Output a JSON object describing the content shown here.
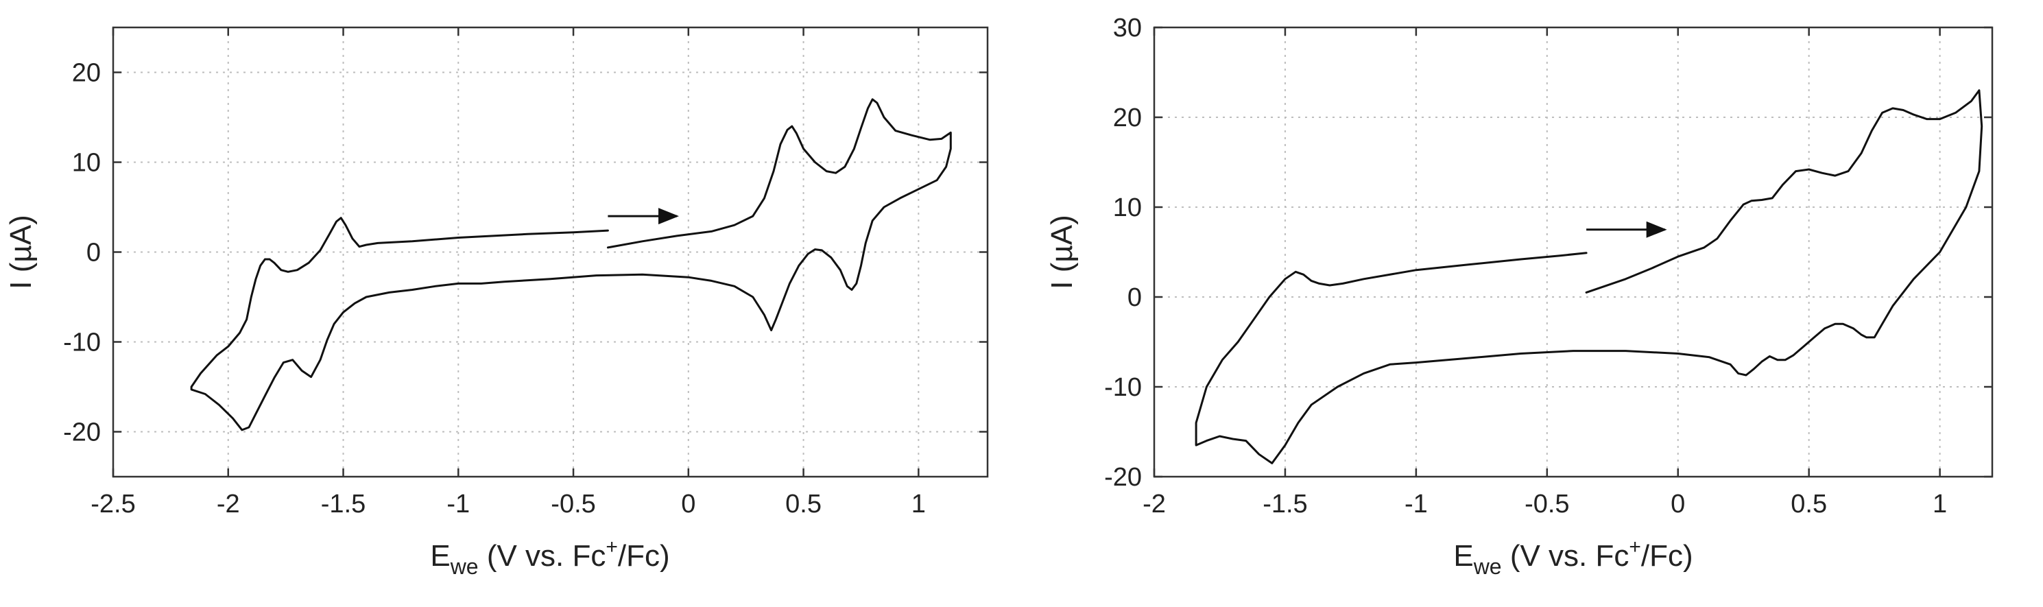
{
  "chart_data": [
    {
      "type": "line",
      "xlabel": {
        "main": "E",
        "sub": "we",
        "rest1": " (V vs. Fc",
        "sup": "+",
        "rest2": "/Fc)"
      },
      "ylabel": "I (µA)",
      "xlim": [
        -2.5,
        1.3
      ],
      "ylim": [
        -25,
        25
      ],
      "xticks": [
        -2.5,
        -2,
        -1.5,
        -1,
        -0.5,
        0,
        0.5,
        1
      ],
      "xtick_labels": [
        "-2.5",
        "-2",
        "-1.5",
        "-1",
        "-0.5",
        "0",
        "0.5",
        "1"
      ],
      "yticks": [
        -20,
        -10,
        0,
        10,
        20
      ],
      "ytick_labels": [
        "-20",
        "-10",
        "0",
        "10",
        "20"
      ],
      "grid": true,
      "arrow": {
        "from": [
          -0.35,
          4.0
        ],
        "to": [
          -0.05,
          4.0
        ]
      },
      "series": [
        {
          "x": [
            -0.35,
            -0.2,
            -0.05,
            0.1,
            0.2,
            0.28,
            0.33,
            0.37,
            0.4,
            0.43,
            0.45,
            0.47,
            0.5,
            0.55,
            0.6,
            0.64,
            0.68,
            0.72,
            0.75,
            0.78,
            0.8,
            0.82,
            0.85,
            0.9,
            0.97,
            1.05,
            1.1,
            1.14,
            1.14,
            1.12,
            1.08,
            1.0,
            0.92,
            0.85,
            0.8,
            0.77,
            0.75,
            0.73,
            0.71,
            0.69,
            0.66,
            0.62,
            0.58,
            0.55,
            0.52,
            0.48,
            0.44,
            0.41,
            0.38,
            0.36,
            0.33,
            0.28,
            0.2,
            0.1,
            0.0,
            -0.2,
            -0.4,
            -0.6,
            -0.8,
            -0.9,
            -1.0,
            -1.1,
            -1.2,
            -1.3,
            -1.4,
            -1.45,
            -1.5,
            -1.54,
            -1.57,
            -1.6,
            -1.64,
            -1.68,
            -1.72,
            -1.76,
            -1.8,
            -1.84,
            -1.88,
            -1.91,
            -1.94,
            -1.98,
            -2.04,
            -2.1,
            -2.16,
            -2.16,
            -2.12,
            -2.05,
            -2.0,
            -1.95,
            -1.92,
            -1.9,
            -1.88,
            -1.86,
            -1.84,
            -1.82,
            -1.8,
            -1.77,
            -1.74,
            -1.7,
            -1.65,
            -1.6,
            -1.56,
            -1.53,
            -1.51,
            -1.49,
            -1.46,
            -1.43,
            -1.4,
            -1.35,
            -1.2,
            -1.0,
            -0.7,
            -0.5,
            -0.35
          ],
          "y": [
            0.5,
            1.2,
            1.8,
            2.3,
            3.0,
            4.0,
            6.0,
            9.0,
            12.0,
            13.6,
            14.0,
            13.2,
            11.5,
            10.0,
            9.0,
            8.8,
            9.5,
            11.5,
            13.8,
            16.0,
            17.0,
            16.6,
            15.0,
            13.5,
            13.0,
            12.5,
            12.6,
            13.3,
            11.5,
            9.5,
            8.0,
            7.0,
            6.0,
            5.0,
            3.5,
            1.0,
            -1.5,
            -3.5,
            -4.2,
            -3.8,
            -2.0,
            -0.6,
            0.2,
            0.3,
            -0.2,
            -1.5,
            -3.5,
            -5.5,
            -7.5,
            -8.7,
            -7.0,
            -5.0,
            -3.8,
            -3.2,
            -2.8,
            -2.5,
            -2.6,
            -3.0,
            -3.3,
            -3.5,
            -3.5,
            -3.8,
            -4.2,
            -4.5,
            -5.0,
            -5.7,
            -6.7,
            -8.0,
            -9.8,
            -12.0,
            -13.9,
            -13.2,
            -12.0,
            -12.3,
            -14.0,
            -16.0,
            -18.0,
            -19.5,
            -19.8,
            -18.5,
            -17.0,
            -15.8,
            -15.3,
            -15.0,
            -13.5,
            -11.5,
            -10.5,
            -9.0,
            -7.5,
            -5.0,
            -3.0,
            -1.5,
            -0.8,
            -0.8,
            -1.2,
            -2.0,
            -2.2,
            -2.0,
            -1.2,
            0.2,
            2.0,
            3.4,
            3.8,
            3.0,
            1.5,
            0.6,
            0.8,
            1.0,
            1.2,
            1.6,
            2.0,
            2.2,
            2.4
          ]
        }
      ]
    },
    {
      "type": "line",
      "xlabel": {
        "main": "E",
        "sub": "we",
        "rest1": " (V vs. Fc",
        "sup": "+",
        "rest2": "/Fc)"
      },
      "ylabel": "I (µA)",
      "xlim": [
        -2.0,
        1.2
      ],
      "ylim": [
        -20,
        30
      ],
      "xticks": [
        -2,
        -1.5,
        -1,
        -0.5,
        0,
        0.5,
        1
      ],
      "xtick_labels": [
        "-2",
        "-1.5",
        "-1",
        "-0.5",
        "0",
        "0.5",
        "1"
      ],
      "yticks": [
        -20,
        -10,
        0,
        10,
        20,
        30
      ],
      "ytick_labels": [
        "-20",
        "-10",
        "0",
        "10",
        "20",
        "30"
      ],
      "grid": true,
      "arrow": {
        "from": [
          -0.35,
          7.5
        ],
        "to": [
          -0.05,
          7.5
        ]
      },
      "series": [
        {
          "x": [
            -0.35,
            -0.2,
            -0.1,
            0.0,
            0.1,
            0.15,
            0.2,
            0.25,
            0.28,
            0.32,
            0.36,
            0.4,
            0.45,
            0.5,
            0.55,
            0.6,
            0.65,
            0.7,
            0.74,
            0.78,
            0.82,
            0.86,
            0.9,
            0.95,
            1.0,
            1.06,
            1.12,
            1.15,
            1.16,
            1.15,
            1.1,
            1.0,
            0.9,
            0.82,
            0.78,
            0.75,
            0.72,
            0.7,
            0.67,
            0.63,
            0.6,
            0.56,
            0.52,
            0.48,
            0.44,
            0.41,
            0.38,
            0.35,
            0.32,
            0.29,
            0.26,
            0.23,
            0.2,
            0.12,
            0.0,
            -0.2,
            -0.4,
            -0.6,
            -0.8,
            -1.0,
            -1.1,
            -1.2,
            -1.3,
            -1.4,
            -1.45,
            -1.5,
            -1.55,
            -1.6,
            -1.65,
            -1.7,
            -1.75,
            -1.8,
            -1.84,
            -1.84,
            -1.8,
            -1.74,
            -1.68,
            -1.62,
            -1.56,
            -1.5,
            -1.46,
            -1.43,
            -1.4,
            -1.37,
            -1.33,
            -1.28,
            -1.2,
            -1.0,
            -0.8,
            -0.6,
            -0.45,
            -0.35
          ],
          "y": [
            0.5,
            2.0,
            3.2,
            4.5,
            5.5,
            6.5,
            8.5,
            10.3,
            10.7,
            10.8,
            11.0,
            12.5,
            14.0,
            14.2,
            13.8,
            13.5,
            14.0,
            16.0,
            18.5,
            20.5,
            21.0,
            20.8,
            20.3,
            19.8,
            19.8,
            20.5,
            21.8,
            23.0,
            19.0,
            14.0,
            10.0,
            5.0,
            2.0,
            -1.0,
            -3.0,
            -4.5,
            -4.5,
            -4.2,
            -3.5,
            -3.0,
            -3.0,
            -3.5,
            -4.5,
            -5.5,
            -6.5,
            -7.0,
            -7.0,
            -6.6,
            -7.2,
            -8.0,
            -8.7,
            -8.5,
            -7.5,
            -6.7,
            -6.3,
            -6.0,
            -6.0,
            -6.3,
            -6.8,
            -7.3,
            -7.5,
            -8.5,
            -10.0,
            -12.0,
            -14.0,
            -16.5,
            -18.5,
            -17.5,
            -16.0,
            -15.8,
            -15.5,
            -16.0,
            -16.5,
            -14.0,
            -10.0,
            -7.0,
            -5.0,
            -2.5,
            0.0,
            2.0,
            2.8,
            2.5,
            1.8,
            1.5,
            1.3,
            1.5,
            2.0,
            3.0,
            3.6,
            4.2,
            4.6,
            4.9
          ]
        }
      ]
    }
  ]
}
